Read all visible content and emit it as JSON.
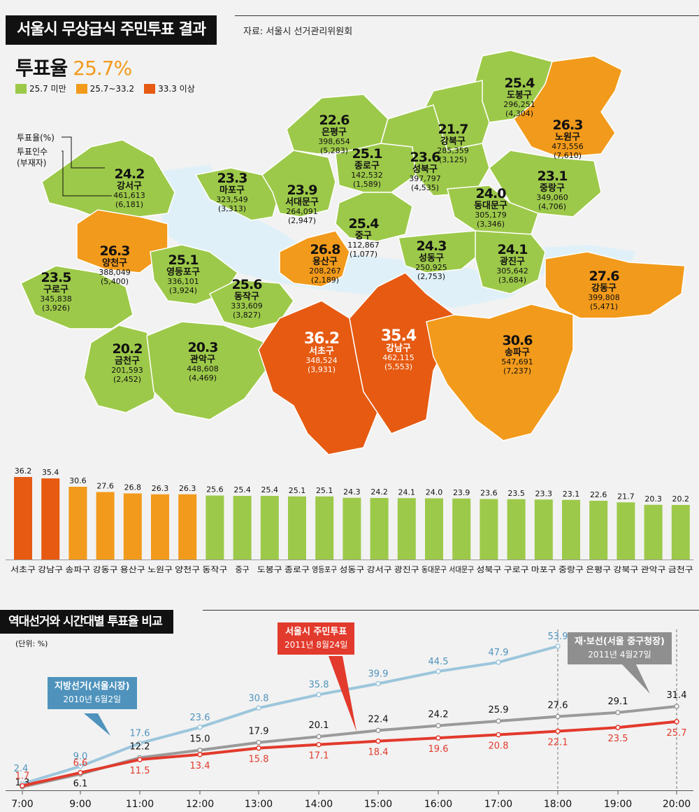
{
  "header": {
    "title": "서울시 무상급식 주민투표 결과",
    "source": "자료: 서울시 선거관리위원회"
  },
  "summary": {
    "label": "투표율",
    "value": "25.7%"
  },
  "legend": [
    {
      "label": "25.7 미만",
      "color": "#9dc94a"
    },
    {
      "label": "25.7~33.2",
      "color": "#f29a1b"
    },
    {
      "label": "33.3 이상",
      "color": "#e65a12"
    }
  ],
  "map_key": {
    "rate_label": "투표율(%)",
    "voters_label": "투표인수",
    "absentee_label": "(부재자)"
  },
  "districts": [
    {
      "name": "도봉구",
      "rate": "25.4",
      "voters": "296,251",
      "absentee": "(4,304)",
      "cat": 0
    },
    {
      "name": "노원구",
      "rate": "26.3",
      "voters": "473,556",
      "absentee": "(7,610)",
      "cat": 1
    },
    {
      "name": "강북구",
      "rate": "21.7",
      "voters": "285,359",
      "absentee": "(3,125)",
      "cat": 0
    },
    {
      "name": "은평구",
      "rate": "22.6",
      "voters": "398,654",
      "absentee": "(5,283)",
      "cat": 0
    },
    {
      "name": "강서구",
      "rate": "24.2",
      "voters": "461,613",
      "absentee": "(6,181)",
      "cat": 0
    },
    {
      "name": "마포구",
      "rate": "23.3",
      "voters": "323,549",
      "absentee": "(3,313)",
      "cat": 0
    },
    {
      "name": "서대문구",
      "rate": "23.9",
      "voters": "264,091",
      "absentee": "(2,947)",
      "cat": 0
    },
    {
      "name": "종로구",
      "rate": "25.1",
      "voters": "142,532",
      "absentee": "(1,589)",
      "cat": 0
    },
    {
      "name": "성북구",
      "rate": "23.6",
      "voters": "397,797",
      "absentee": "(4,535)",
      "cat": 0
    },
    {
      "name": "중랑구",
      "rate": "23.1",
      "voters": "349,060",
      "absentee": "(4,706)",
      "cat": 0
    },
    {
      "name": "동대문구",
      "rate": "24.0",
      "voters": "305,179",
      "absentee": "(3,346)",
      "cat": 0
    },
    {
      "name": "중구",
      "rate": "25.4",
      "voters": "112,867",
      "absentee": "(1,077)",
      "cat": 0
    },
    {
      "name": "양천구",
      "rate": "26.3",
      "voters": "388,049",
      "absentee": "(5,400)",
      "cat": 1
    },
    {
      "name": "영등포구",
      "rate": "25.1",
      "voters": "336,101",
      "absentee": "(3,924)",
      "cat": 0
    },
    {
      "name": "용산구",
      "rate": "26.8",
      "voters": "208,267",
      "absentee": "(2,189)",
      "cat": 1
    },
    {
      "name": "성동구",
      "rate": "24.3",
      "voters": "250,925",
      "absentee": "(2,753)",
      "cat": 0
    },
    {
      "name": "광진구",
      "rate": "24.1",
      "voters": "305,642",
      "absentee": "(3,684)",
      "cat": 0
    },
    {
      "name": "구로구",
      "rate": "23.5",
      "voters": "345,838",
      "absentee": "(3,926)",
      "cat": 0
    },
    {
      "name": "동작구",
      "rate": "25.6",
      "voters": "333,609",
      "absentee": "(3,827)",
      "cat": 0
    },
    {
      "name": "강동구",
      "rate": "27.6",
      "voters": "399,808",
      "absentee": "(5,471)",
      "cat": 1
    },
    {
      "name": "금천구",
      "rate": "20.2",
      "voters": "201,593",
      "absentee": "(2,452)",
      "cat": 0
    },
    {
      "name": "관악구",
      "rate": "20.3",
      "voters": "448,608",
      "absentee": "(4,469)",
      "cat": 0
    },
    {
      "name": "서초구",
      "rate": "36.2",
      "voters": "348,524",
      "absentee": "(3,931)",
      "cat": 2
    },
    {
      "name": "강남구",
      "rate": "35.4",
      "voters": "462,115",
      "absentee": "(5,553)",
      "cat": 2
    },
    {
      "name": "송파구",
      "rate": "30.6",
      "voters": "547,691",
      "absentee": "(7,237)",
      "cat": 1
    }
  ],
  "chart_data": [
    {
      "type": "bar",
      "categories": [
        "서초구",
        "강남구",
        "송파구",
        "강동구",
        "용산구",
        "노원구",
        "양천구",
        "동작구",
        "중구",
        "도봉구",
        "종로구",
        "영등포구",
        "성동구",
        "강서구",
        "광진구",
        "동대문구",
        "서대문구",
        "성북구",
        "구로구",
        "마포구",
        "중랑구",
        "은평구",
        "강북구",
        "관악구",
        "금천구"
      ],
      "values": [
        36.2,
        35.4,
        30.6,
        27.6,
        26.8,
        26.3,
        26.3,
        25.6,
        25.4,
        25.4,
        25.1,
        25.1,
        24.3,
        24.2,
        24.1,
        24.0,
        23.9,
        23.6,
        23.5,
        23.3,
        23.1,
        22.6,
        21.7,
        20.3,
        20.2
      ],
      "value_labels": [
        "36.2",
        "35.4",
        "30.6",
        "27.6",
        "26.8",
        "26.3",
        "26.3",
        "25.6",
        "25.4",
        "25.4",
        "25.1",
        "25.1",
        "24.3",
        "24.2",
        "24.1",
        "24.0",
        "23.9",
        "23.6",
        "23.5",
        "23.3",
        "23.1",
        "22.6",
        "21.7",
        "20.3",
        "20.2"
      ],
      "colors": {
        "low": "#9dc94a",
        "mid": "#f29a1b",
        "high": "#e65a12"
      },
      "title": "",
      "xlabel": "",
      "ylabel": "",
      "ylim": [
        0,
        40
      ]
    },
    {
      "type": "line",
      "title": "역대선거와 시간대별 투표율 비교",
      "unit_label": "(단위: %)",
      "x": [
        "7:00",
        "9:00",
        "11:00",
        "12:00",
        "13:00",
        "14:00",
        "15:00",
        "16:00",
        "17:00",
        "18:00",
        "19:00",
        "20:00"
      ],
      "ylim": [
        0,
        58
      ],
      "series": [
        {
          "name": "지방선거(서울시장)",
          "subtitle": "2010년 6월2일",
          "color": "#9cc6dc",
          "values": [
            2.4,
            9.0,
            17.6,
            23.6,
            30.8,
            35.8,
            39.9,
            44.5,
            47.9,
            53.9,
            null,
            null
          ],
          "labels": [
            "2.4",
            "9.0",
            "17.6",
            "23.6",
            "30.8",
            "35.8",
            "39.9",
            "44.5",
            "47.9",
            "53.9",
            "",
            ""
          ]
        },
        {
          "name": "재·보선(서울 중구청장)",
          "subtitle": "2011년 4월27일",
          "color": "#9a9a9a",
          "values": [
            1.3,
            6.1,
            12.2,
            15.0,
            17.9,
            20.1,
            22.4,
            24.2,
            25.9,
            27.6,
            29.1,
            31.4
          ],
          "labels": [
            "1.3",
            "6.1",
            "12.2",
            "15.0",
            "17.9",
            "20.1",
            "22.4",
            "24.2",
            "25.9",
            "27.6",
            "29.1",
            "31.4"
          ]
        },
        {
          "name": "서울시 주민투표",
          "subtitle": "2011년 8월24일",
          "color": "#e23a2c",
          "values": [
            1.7,
            6.6,
            11.5,
            13.4,
            15.8,
            17.1,
            18.4,
            19.6,
            20.8,
            22.1,
            23.5,
            25.7
          ],
          "labels": [
            "1.7",
            "6.6",
            "11.5",
            "13.4",
            "15.8",
            "17.1",
            "18.4",
            "19.6",
            "20.8",
            "22.1",
            "23.5",
            "25.7"
          ]
        }
      ]
    }
  ]
}
